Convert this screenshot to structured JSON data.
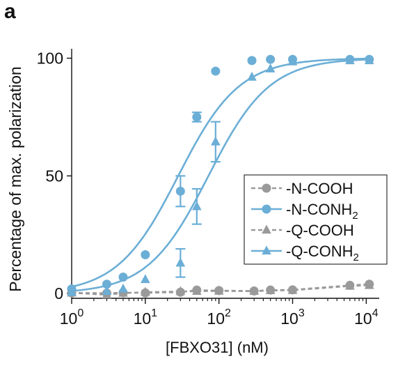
{
  "panel_label": "a",
  "chart_data": {
    "type": "scatter",
    "xscale": "log",
    "xlabel": "[FBXO31] (nM)",
    "ylabel": "Percentage of max. polarization",
    "xlim": [
      1,
      15000
    ],
    "ylim": [
      -2,
      104
    ],
    "xticks": [
      1,
      10,
      100,
      1000,
      10000
    ],
    "xtick_labels": [
      [
        "10",
        "0"
      ],
      [
        "10",
        "1"
      ],
      [
        "10",
        "2"
      ],
      [
        "10",
        "3"
      ],
      [
        "10",
        "4"
      ]
    ],
    "yticks": [
      0,
      50,
      100
    ],
    "ytick_labels": [
      "0",
      "50",
      "100"
    ],
    "grid": false,
    "legend_position": "lower-right",
    "series": [
      {
        "name": [
          "-N-COOH",
          ""
        ],
        "marker": "circle",
        "line": "dashed",
        "color": "#9a9a9a",
        "points": [
          {
            "x": 1,
            "y": 0.3
          },
          {
            "x": 3,
            "y": 0.2
          },
          {
            "x": 5,
            "y": 0.4
          },
          {
            "x": 10,
            "y": 0.3
          },
          {
            "x": 30,
            "y": 0.6
          },
          {
            "x": 50,
            "y": 1.5
          },
          {
            "x": 100,
            "y": 1.3
          },
          {
            "x": 300,
            "y": 1.1
          },
          {
            "x": 500,
            "y": 1.5
          },
          {
            "x": 1000,
            "y": 1.6
          },
          {
            "x": 6000,
            "y": 3.5
          },
          {
            "x": 11000,
            "y": 4
          }
        ]
      },
      {
        "name": [
          "-N-CONH",
          "2"
        ],
        "marker": "circle",
        "line": "solid-fit",
        "color": "#6baed6",
        "fit": {
          "ec50": 28,
          "hill": 1.05,
          "top": 100
        },
        "points": [
          {
            "x": 1,
            "y": 2
          },
          {
            "x": 3,
            "y": 4
          },
          {
            "x": 5,
            "y": 7
          },
          {
            "x": 10,
            "y": 16.5
          },
          {
            "x": 30,
            "y": 43.5,
            "err": 6.5
          },
          {
            "x": 50,
            "y": 75,
            "err": 2
          },
          {
            "x": 90,
            "y": 94.5
          },
          {
            "x": 280,
            "y": 99
          },
          {
            "x": 500,
            "y": 99.5
          },
          {
            "x": 1000,
            "y": 99.5
          },
          {
            "x": 6000,
            "y": 99.5
          },
          {
            "x": 11000,
            "y": 99.5
          }
        ]
      },
      {
        "name": [
          "-Q-COOH",
          ""
        ],
        "marker": "triangle",
        "line": "dashed",
        "color": "#9a9a9a",
        "points": [
          {
            "x": 1,
            "y": 0.3
          },
          {
            "x": 3,
            "y": -0.5
          },
          {
            "x": 5,
            "y": 0.2
          },
          {
            "x": 10,
            "y": 0.6
          },
          {
            "x": 30,
            "y": 0.9
          },
          {
            "x": 50,
            "y": 1.0
          },
          {
            "x": 100,
            "y": 1.1
          },
          {
            "x": 300,
            "y": 1.0
          },
          {
            "x": 500,
            "y": 1.3
          },
          {
            "x": 1000,
            "y": 1.4
          },
          {
            "x": 6000,
            "y": 3.2
          },
          {
            "x": 11000,
            "y": 3.5
          }
        ]
      },
      {
        "name": [
          "-Q-CONH",
          "2"
        ],
        "marker": "triangle",
        "line": "solid-fit",
        "color": "#6baed6",
        "fit": {
          "ec50": 72,
          "hill": 1.05,
          "top": 100
        },
        "points": [
          {
            "x": 1,
            "y": 0.5
          },
          {
            "x": 3,
            "y": 1
          },
          {
            "x": 5,
            "y": 2
          },
          {
            "x": 10,
            "y": 6
          },
          {
            "x": 30,
            "y": 13,
            "err": 6
          },
          {
            "x": 50,
            "y": 37,
            "err": 7.5
          },
          {
            "x": 90,
            "y": 64.5,
            "err": 8.5
          },
          {
            "x": 280,
            "y": 92
          },
          {
            "x": 500,
            "y": 95.5
          },
          {
            "x": 1000,
            "y": 98.5
          },
          {
            "x": 6000,
            "y": 99
          },
          {
            "x": 11000,
            "y": 99
          }
        ]
      }
    ]
  }
}
